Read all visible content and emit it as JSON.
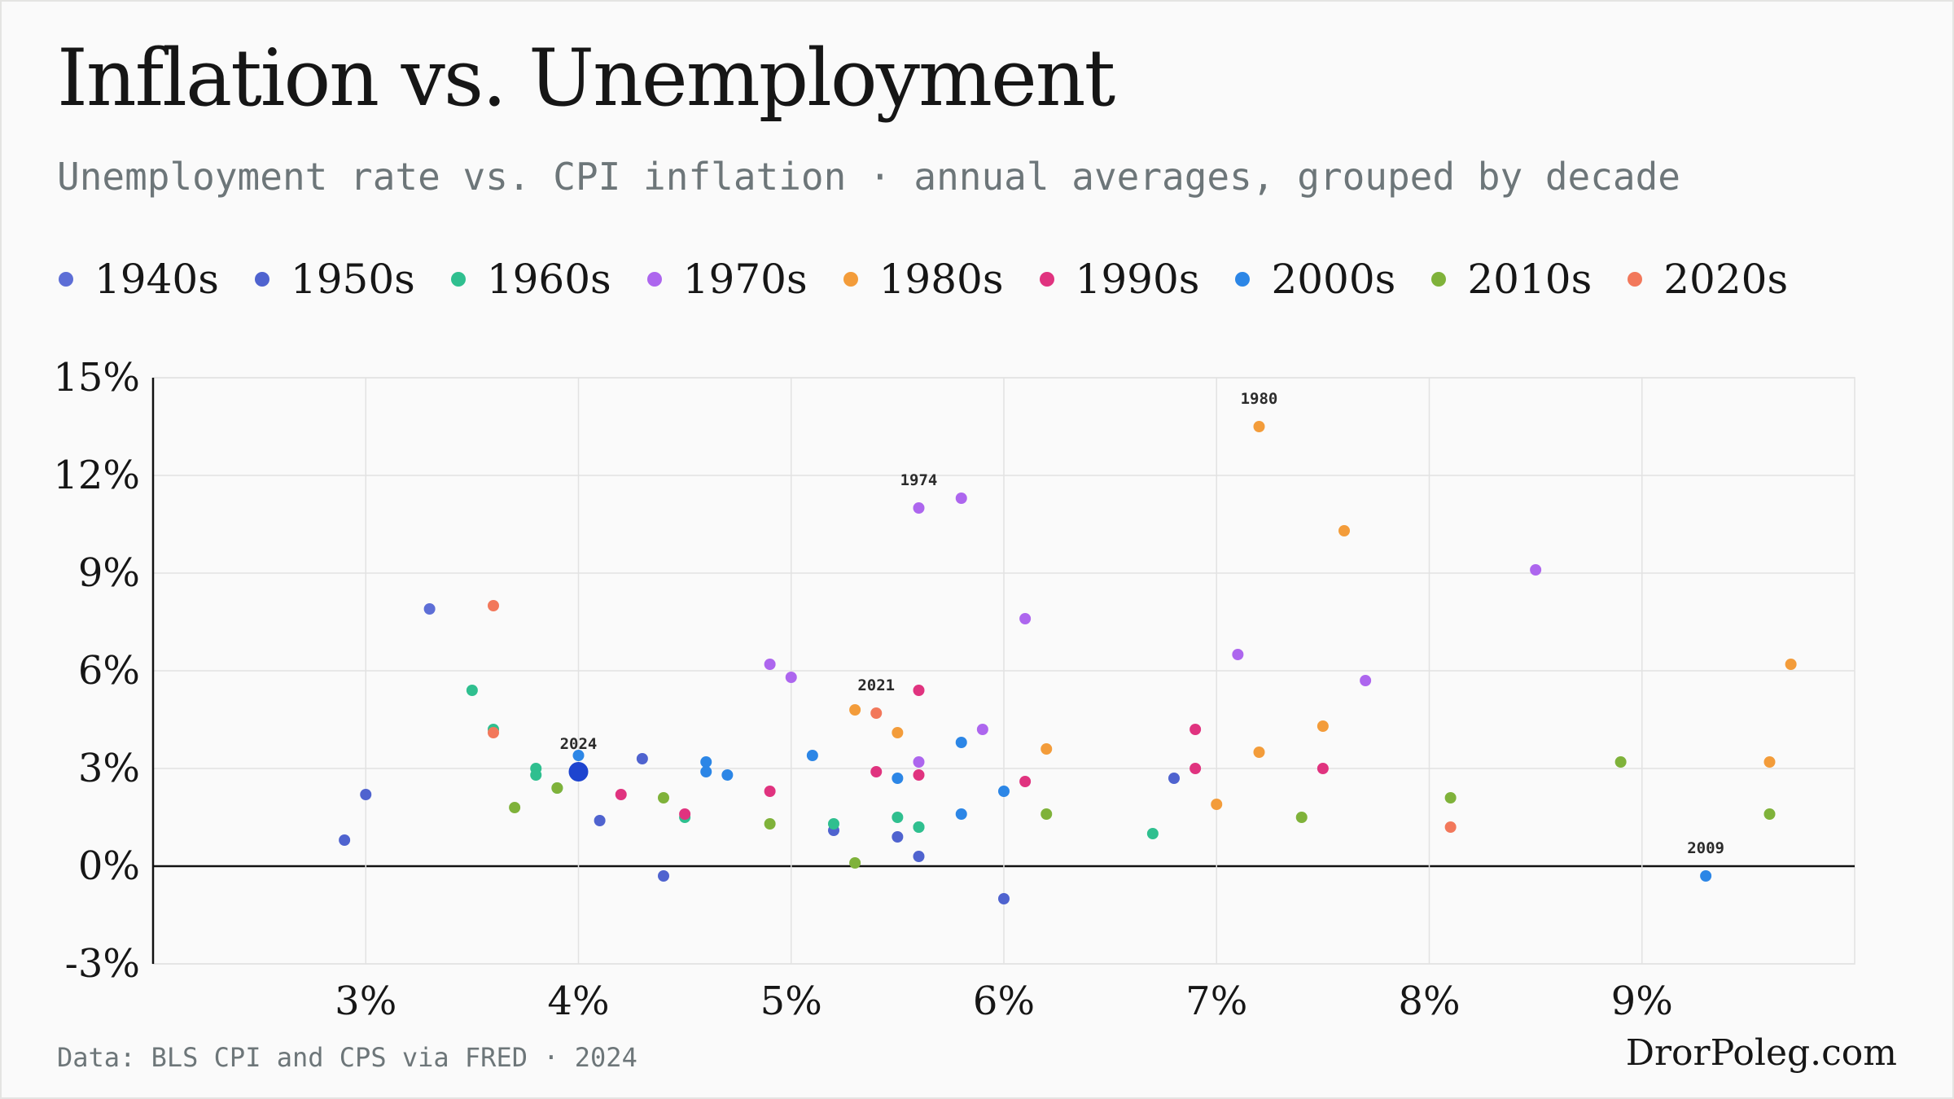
{
  "header": {
    "title": "Inflation vs. Unemployment",
    "subtitle": "Unemployment rate vs. CPI inflation · annual averages, grouped by decade"
  },
  "footer": {
    "source": "Data: BLS CPI and CPS via FRED · 2024",
    "brand": "DrorPoleg.com"
  },
  "chart_data": {
    "type": "scatter",
    "title": "Inflation vs. Unemployment",
    "subtitle": "Unemployment rate vs. CPI inflation · annual averages, grouped by decade",
    "xlabel": "",
    "ylabel": "",
    "xlim": [
      2.0,
      10.0
    ],
    "ylim": [
      -3,
      15
    ],
    "x_ticks": [
      3,
      4,
      5,
      6,
      7,
      8,
      9
    ],
    "x_tick_labels": [
      "3%",
      "4%",
      "5%",
      "6%",
      "7%",
      "8%",
      "9%"
    ],
    "y_ticks": [
      -3,
      0,
      3,
      6,
      9,
      12,
      15
    ],
    "y_tick_labels": [
      "-3%",
      "0%",
      "3%",
      "6%",
      "9%",
      "12%",
      "15%"
    ],
    "grid": true,
    "legend_position": "top",
    "series": [
      {
        "name": "1940s",
        "color": "#5d6ed6",
        "points": [
          [
            3.3,
            7.9
          ]
        ]
      },
      {
        "name": "1950s",
        "color": "#4f63cf",
        "points": [
          [
            2.9,
            0.8
          ],
          [
            3.0,
            2.2
          ],
          [
            4.1,
            1.4
          ],
          [
            4.3,
            3.3
          ],
          [
            4.4,
            -0.3
          ],
          [
            5.2,
            1.1
          ],
          [
            5.5,
            0.9
          ],
          [
            5.6,
            0.3
          ],
          [
            6.0,
            -1.0
          ],
          [
            6.8,
            2.7
          ]
        ]
      },
      {
        "name": "1960s",
        "color": "#2fbf8f",
        "points": [
          [
            3.5,
            5.4
          ],
          [
            3.6,
            4.2
          ],
          [
            3.8,
            3.0
          ],
          [
            3.8,
            2.8
          ],
          [
            3.9,
            2.4
          ],
          [
            4.5,
            1.5
          ],
          [
            5.2,
            1.3
          ],
          [
            5.5,
            1.5
          ],
          [
            5.6,
            1.2
          ],
          [
            5.6,
            1.2
          ],
          [
            6.7,
            1.0
          ]
        ]
      },
      {
        "name": "1970s",
        "color": "#ad66ee",
        "points": [
          [
            4.9,
            6.2
          ],
          [
            5.0,
            5.8
          ],
          [
            5.6,
            3.2
          ],
          [
            5.6,
            11.0
          ],
          [
            5.8,
            11.3
          ],
          [
            5.9,
            4.2
          ],
          [
            6.1,
            7.6
          ],
          [
            7.1,
            6.5
          ],
          [
            7.7,
            5.7
          ],
          [
            8.5,
            9.1
          ]
        ]
      },
      {
        "name": "1980s",
        "color": "#f39c3a",
        "points": [
          [
            5.3,
            4.8
          ],
          [
            5.5,
            4.1
          ],
          [
            6.2,
            3.6
          ],
          [
            7.0,
            1.9
          ],
          [
            7.2,
            3.5
          ],
          [
            7.2,
            13.5
          ],
          [
            7.5,
            4.3
          ],
          [
            7.6,
            10.3
          ],
          [
            9.6,
            3.2
          ],
          [
            9.7,
            6.2
          ]
        ]
      },
      {
        "name": "1990s",
        "color": "#e0337f",
        "points": [
          [
            4.2,
            2.2
          ],
          [
            4.5,
            1.6
          ],
          [
            4.9,
            2.3
          ],
          [
            5.4,
            2.9
          ],
          [
            5.6,
            2.8
          ],
          [
            5.6,
            5.4
          ],
          [
            6.1,
            2.6
          ],
          [
            6.9,
            4.2
          ],
          [
            6.9,
            3.0
          ],
          [
            7.5,
            3.0
          ]
        ]
      },
      {
        "name": "2000s",
        "color": "#2c86e6",
        "points": [
          [
            4.0,
            3.4
          ],
          [
            4.6,
            3.2
          ],
          [
            4.6,
            2.9
          ],
          [
            4.7,
            2.8
          ],
          [
            5.1,
            3.4
          ],
          [
            5.5,
            2.7
          ],
          [
            5.8,
            1.6
          ],
          [
            5.8,
            3.8
          ],
          [
            6.0,
            2.3
          ],
          [
            9.3,
            -0.3
          ]
        ]
      },
      {
        "name": "2010s",
        "color": "#7fb23a",
        "points": [
          [
            3.7,
            1.8
          ],
          [
            3.9,
            2.4
          ],
          [
            4.4,
            2.1
          ],
          [
            4.9,
            1.3
          ],
          [
            5.3,
            0.1
          ],
          [
            6.2,
            1.6
          ],
          [
            7.4,
            1.5
          ],
          [
            8.1,
            2.1
          ],
          [
            8.9,
            3.2
          ],
          [
            9.6,
            1.6
          ]
        ]
      },
      {
        "name": "2020s",
        "color": "#f2785b",
        "points": [
          [
            3.6,
            4.1
          ],
          [
            3.6,
            8.0
          ],
          [
            5.4,
            4.7
          ],
          [
            8.1,
            1.2
          ]
        ]
      }
    ],
    "highlight": {
      "name": "2024",
      "x": 4.0,
      "y": 2.9,
      "color": "#1e44cf"
    },
    "annotations": [
      {
        "label": "1980",
        "x": 7.2,
        "y": 13.5
      },
      {
        "label": "1974",
        "x": 5.6,
        "y": 11.0
      },
      {
        "label": "2021",
        "x": 5.4,
        "y": 4.7
      },
      {
        "label": "2024",
        "x": 4.0,
        "y": 2.9
      },
      {
        "label": "2009",
        "x": 9.3,
        "y": -0.3
      }
    ]
  }
}
